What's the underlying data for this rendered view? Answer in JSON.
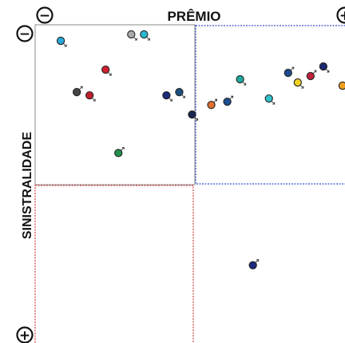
{
  "chart_data": {
    "type": "scatter",
    "xlabel": "PRÊMIO",
    "ylabel": "SINISTRALIDADE",
    "x_axis_markers": {
      "low": "−",
      "high": "+"
    },
    "y_axis_markers": {
      "low": "+",
      "high": "−"
    },
    "xlim": [
      0,
      100
    ],
    "ylim": [
      0,
      100
    ],
    "split": {
      "x": 50,
      "y": 50
    },
    "grid": false,
    "legend": "none",
    "quadrant_colors": {
      "top_right": "#3a4fcf",
      "bottom_left": "#d04040",
      "top_left": "#888888"
    },
    "points": [
      {
        "x": 8,
        "y": 95,
        "color": "#29a8d8",
        "trend": "down"
      },
      {
        "x": 30,
        "y": 97,
        "color": "#aaaaaa",
        "trend": "down"
      },
      {
        "x": 34,
        "y": 97,
        "color": "#29b8d0",
        "trend": "down"
      },
      {
        "x": 22,
        "y": 86,
        "color": "#d02030",
        "trend": "down"
      },
      {
        "x": 13,
        "y": 79,
        "color": "#444444",
        "trend": "up"
      },
      {
        "x": 17,
        "y": 78,
        "color": "#c0202c",
        "trend": "down"
      },
      {
        "x": 41,
        "y": 78,
        "color": "#1b2a7a",
        "trend": "down"
      },
      {
        "x": 45,
        "y": 79,
        "color": "#1a4f80",
        "trend": "down"
      },
      {
        "x": 49,
        "y": 72,
        "color": "#17264f",
        "trend": "down"
      },
      {
        "x": 55,
        "y": 75,
        "color": "#e07030",
        "trend": "up"
      },
      {
        "x": 60,
        "y": 76,
        "color": "#1b4f90",
        "trend": "up"
      },
      {
        "x": 64,
        "y": 83,
        "color": "#20a8a0",
        "trend": "down"
      },
      {
        "x": 73,
        "y": 77,
        "color": "#30c0c8",
        "trend": "down"
      },
      {
        "x": 79,
        "y": 85,
        "color": "#1b4a90",
        "trend": "up"
      },
      {
        "x": 82,
        "y": 82,
        "color": "#f0d020",
        "trend": "down"
      },
      {
        "x": 86,
        "y": 84,
        "color": "#c0203a",
        "trend": "up"
      },
      {
        "x": 90,
        "y": 87,
        "color": "#1b2a70",
        "trend": "down"
      },
      {
        "x": 96,
        "y": 81,
        "color": "#f0a020",
        "trend": "down"
      },
      {
        "x": 26,
        "y": 60,
        "color": "#20904a",
        "trend": "up"
      },
      {
        "x": 68,
        "y": 25,
        "color": "#1b2a80",
        "trend": "up"
      }
    ]
  }
}
